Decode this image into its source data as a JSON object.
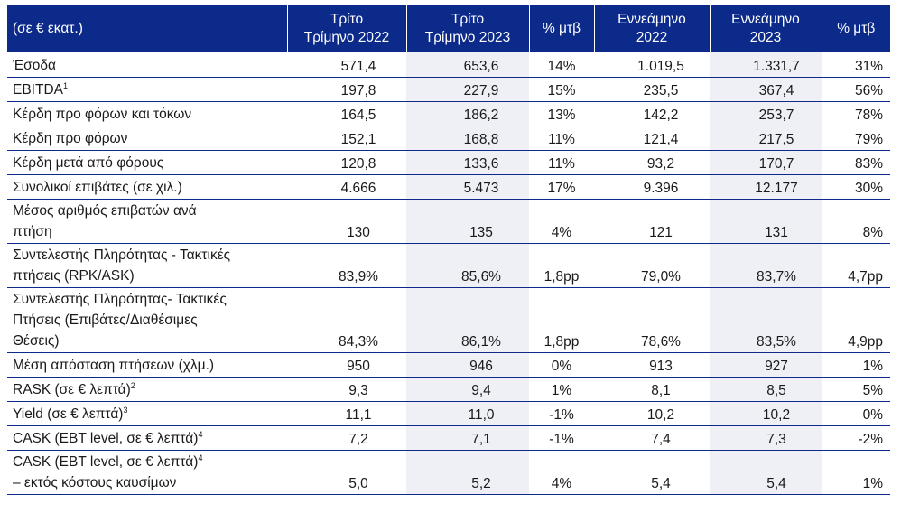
{
  "header": {
    "col0": "(σε € εκατ.)",
    "col1": [
      "Τρίτο",
      "Τρίμηνο 2022"
    ],
    "col2": [
      "Τρίτο",
      "Τρίμηνο 2023"
    ],
    "col3": "% μτβ",
    "col4": [
      "Εννεάμηνο",
      "2022"
    ],
    "col5": [
      "Εννεάμηνο",
      "2023"
    ],
    "col6": "% μτβ"
  },
  "rows": [
    {
      "label": [
        "Έσοδα"
      ],
      "sup": "",
      "values": [
        "571,4",
        "653,6",
        "14%",
        "1.019,5",
        "1.331,7",
        "31%"
      ]
    },
    {
      "label": [
        "EBITDA"
      ],
      "sup": "1",
      "values": [
        "197,8",
        "227,9",
        "15%",
        "235,5",
        "367,4",
        "56%"
      ]
    },
    {
      "label": [
        "Κέρδη προ φόρων και τόκων"
      ],
      "sup": "",
      "values": [
        "164,5",
        "186,2",
        "13%",
        "142,2",
        "253,7",
        "78%"
      ]
    },
    {
      "label": [
        "Κέρδη προ φόρων"
      ],
      "sup": "",
      "values": [
        "152,1",
        "168,8",
        "11%",
        "121,4",
        "217,5",
        "79%"
      ]
    },
    {
      "label": [
        "Κέρδη μετά από φόρους"
      ],
      "sup": "",
      "values": [
        "120,8",
        "133,6",
        "11%",
        "93,2",
        "170,7",
        "83%"
      ]
    },
    {
      "label": [
        "Συνολικοί επιβάτες (σε χιλ.)"
      ],
      "sup": "",
      "values": [
        "4.666",
        "5.473",
        "17%",
        "9.396",
        "12.177",
        "30%"
      ]
    },
    {
      "label": [
        "Μέσος αριθμός επιβατών ανά",
        "πτήση"
      ],
      "sup": "",
      "values": [
        "130",
        "135",
        "4%",
        "121",
        "131",
        "8%"
      ]
    },
    {
      "label": [
        "Συντελεστής Πληρότητας - Τακτικές",
        "πτήσεις (RPK/ASK)"
      ],
      "sup": "",
      "values": [
        "83,9%",
        "85,6%",
        "1,8pp",
        "79,0%",
        "83,7%",
        "4,7pp"
      ]
    },
    {
      "label": [
        "Συντελεστής Πληρότητας- Τακτικές",
        "Πτήσεις (Επιβάτες/Διαθέσιμες",
        "Θέσεις)"
      ],
      "sup": "",
      "values": [
        "84,3%",
        "86,1%",
        "1,8pp",
        "78,6%",
        "83,5%",
        "4,9pp"
      ]
    },
    {
      "label": [
        "Μέση απόσταση πτήσεων (χλμ.)"
      ],
      "sup": "",
      "values": [
        "950",
        "946",
        "0%",
        "913",
        "927",
        "1%"
      ]
    },
    {
      "label": [
        "RASK (σε € λεπτά)"
      ],
      "sup": "2",
      "values": [
        "9,3",
        "9,4",
        "1%",
        "8,1",
        "8,5",
        "5%"
      ]
    },
    {
      "label": [
        "Yield (σε € λεπτά)"
      ],
      "sup": "3",
      "values": [
        "11,1",
        "11,0",
        "-1%",
        "10,2",
        "10,2",
        "0%"
      ]
    },
    {
      "label": [
        "CASK (EBT level, σε € λεπτά)"
      ],
      "sup": "4",
      "values": [
        "7,2",
        "7,1",
        "-1%",
        "7,4",
        "7,3",
        "-2%"
      ]
    },
    {
      "label": [
        "CASK (EBT level, σε € λεπτά)",
        "– εκτός κόστους καυσίμων"
      ],
      "sup": "4",
      "values": [
        "5,0",
        "5,2",
        "4%",
        "5,4",
        "5,4",
        "1%"
      ]
    }
  ]
}
